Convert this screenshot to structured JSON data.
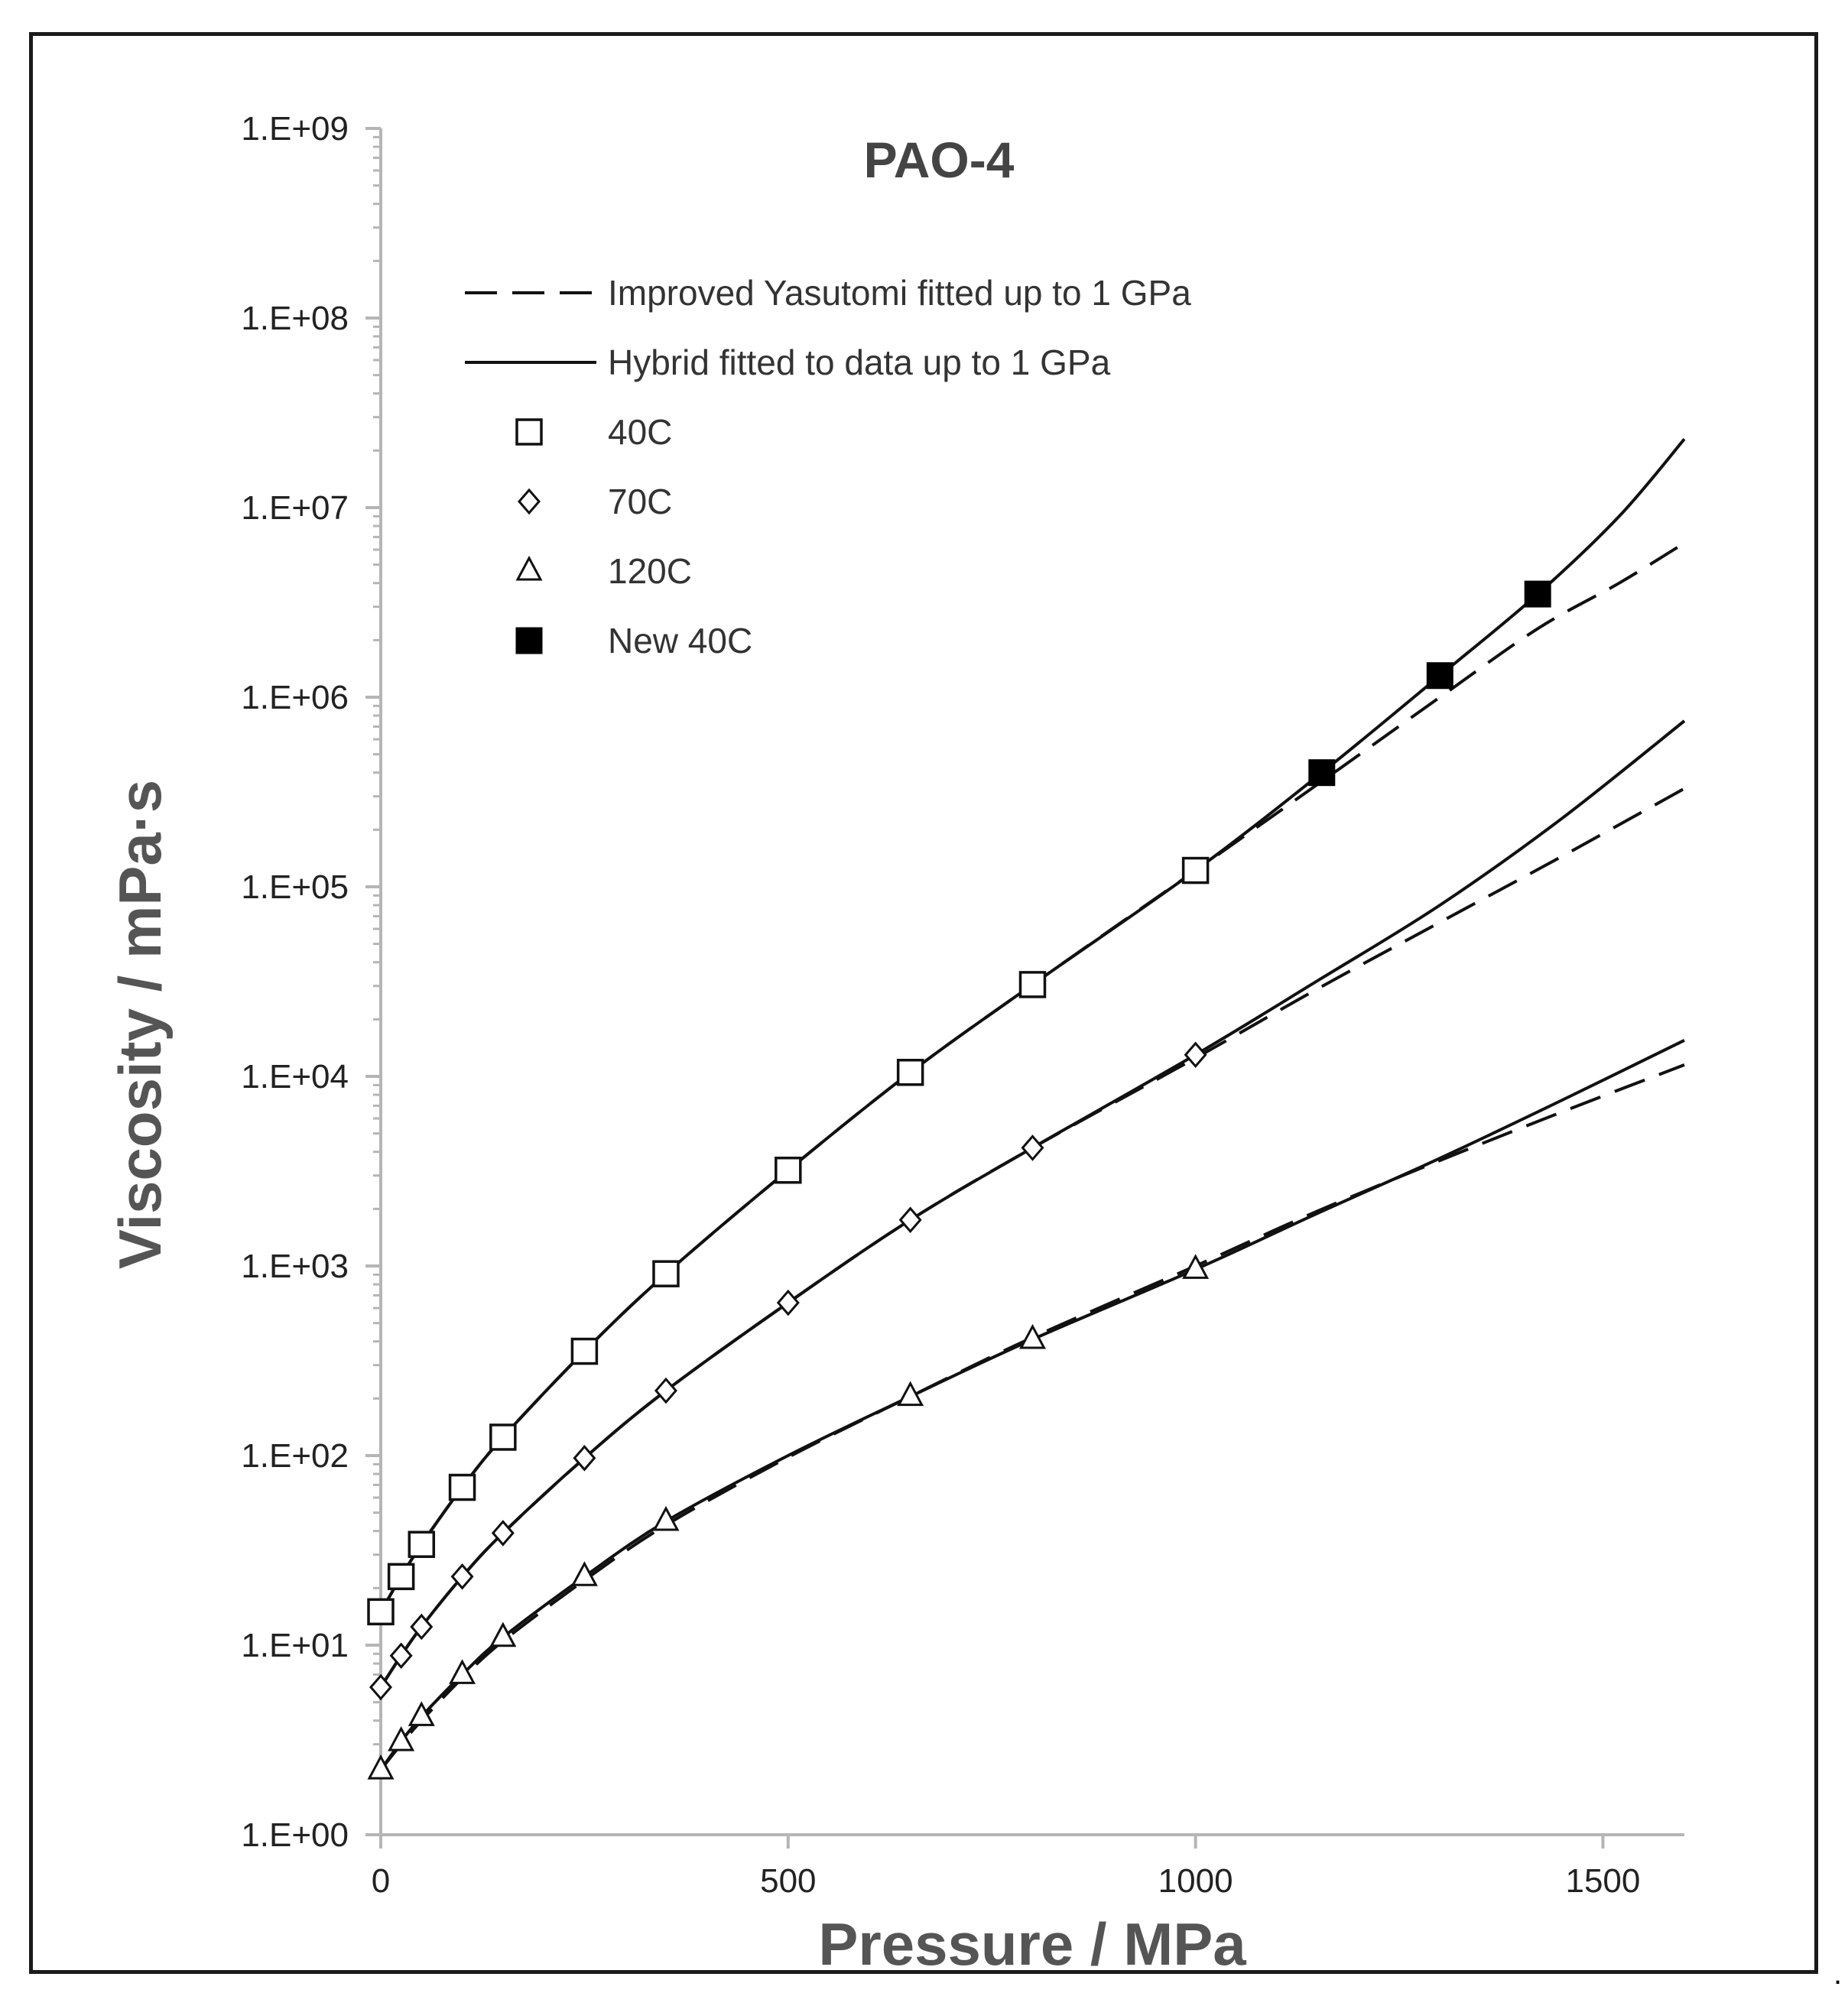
{
  "chart_data": {
    "type": "scatter",
    "title": "PAO-4",
    "xlabel": "Pressure / MPa",
    "ylabel": "Viscosity / mPa·s",
    "xlim": [
      0,
      1600
    ],
    "ylim": [
      1,
      1000000000
    ],
    "yscale": "log",
    "grid": false,
    "legend_position": "top-left",
    "x_ticks": [
      0,
      500,
      1000,
      1500
    ],
    "x_tick_labels": [
      "0",
      "500",
      "1000",
      "1500"
    ],
    "y_ticks": [
      1,
      10,
      100,
      1000,
      10000,
      100000,
      1000000,
      10000000,
      100000000,
      1000000000
    ],
    "y_tick_labels": [
      "1.E+00",
      "1.E+01",
      "1.E+02",
      "1.E+03",
      "1.E+04",
      "1.E+05",
      "1.E+06",
      "1.E+07",
      "1.E+08",
      "1.E+09"
    ],
    "legend": [
      {
        "label": "Improved Yasutomi fitted up to 1 GPa",
        "symbol": "dashed-line"
      },
      {
        "label": "Hybrid fitted to data up to 1 GPa",
        "symbol": "solid-line"
      },
      {
        "label": "40C",
        "symbol": "open-square"
      },
      {
        "label": "70C",
        "symbol": "open-diamond"
      },
      {
        "label": "120C",
        "symbol": "open-triangle"
      },
      {
        "label": "New 40C",
        "symbol": "filled-square"
      }
    ],
    "series": [
      {
        "name": "40C",
        "marker": "open-square",
        "points": [
          [
            0,
            15
          ],
          [
            25,
            23
          ],
          [
            50,
            34
          ],
          [
            100,
            68
          ],
          [
            150,
            125
          ],
          [
            250,
            355
          ],
          [
            350,
            910
          ],
          [
            500,
            3200
          ],
          [
            650,
            10500
          ],
          [
            800,
            30500
          ],
          [
            1000,
            122000
          ]
        ]
      },
      {
        "name": "70C",
        "marker": "open-diamond",
        "points": [
          [
            0,
            6
          ],
          [
            25,
            8.8
          ],
          [
            50,
            12.5
          ],
          [
            100,
            23
          ],
          [
            150,
            39
          ],
          [
            250,
            97
          ],
          [
            350,
            220
          ],
          [
            500,
            640
          ],
          [
            650,
            1750
          ],
          [
            800,
            4200
          ],
          [
            1000,
            13000
          ]
        ]
      },
      {
        "name": "120C",
        "marker": "open-triangle",
        "points": [
          [
            0,
            2.2
          ],
          [
            25,
            3.1
          ],
          [
            50,
            4.2
          ],
          [
            100,
            7
          ],
          [
            150,
            11
          ],
          [
            250,
            23
          ],
          [
            350,
            45
          ],
          [
            650,
            205
          ],
          [
            800,
            410
          ],
          [
            1000,
            960
          ]
        ]
      },
      {
        "name": "New 40C",
        "marker": "filled-square",
        "points": [
          [
            1155,
            400000
          ],
          [
            1300,
            1300000
          ],
          [
            1420,
            3500000
          ]
        ]
      }
    ],
    "curves": [
      {
        "model": "Hybrid fitted to data up to 1 GPa",
        "temperature": "40C",
        "style": "solid",
        "points": [
          [
            0,
            15
          ],
          [
            25,
            23
          ],
          [
            50,
            34
          ],
          [
            100,
            68
          ],
          [
            150,
            125
          ],
          [
            250,
            355
          ],
          [
            350,
            910
          ],
          [
            500,
            3200
          ],
          [
            650,
            10500
          ],
          [
            800,
            30500
          ],
          [
            1000,
            122000
          ],
          [
            1155,
            400000
          ],
          [
            1300,
            1300000
          ],
          [
            1420,
            3500000
          ],
          [
            1520,
            9000000
          ],
          [
            1600,
            23000000
          ]
        ]
      },
      {
        "model": "Improved Yasutomi fitted up to 1 GPa",
        "temperature": "40C",
        "style": "dashed",
        "points": [
          [
            0,
            15
          ],
          [
            25,
            23
          ],
          [
            50,
            34
          ],
          [
            100,
            68
          ],
          [
            150,
            125
          ],
          [
            250,
            355
          ],
          [
            350,
            910
          ],
          [
            500,
            3200
          ],
          [
            650,
            10500
          ],
          [
            800,
            30500
          ],
          [
            1000,
            122000
          ],
          [
            1155,
            360000
          ],
          [
            1300,
            1000000
          ],
          [
            1420,
            2300000
          ],
          [
            1520,
            4000000
          ],
          [
            1600,
            6500000
          ]
        ]
      },
      {
        "model": "Hybrid fitted to data up to 1 GPa",
        "temperature": "70C",
        "style": "solid",
        "points": [
          [
            0,
            6
          ],
          [
            25,
            8.8
          ],
          [
            50,
            12.5
          ],
          [
            100,
            23
          ],
          [
            150,
            39
          ],
          [
            250,
            97
          ],
          [
            350,
            220
          ],
          [
            500,
            640
          ],
          [
            650,
            1750
          ],
          [
            800,
            4200
          ],
          [
            1000,
            13000
          ],
          [
            1150,
            32000
          ],
          [
            1300,
            80000
          ],
          [
            1450,
            230000
          ],
          [
            1600,
            750000
          ]
        ]
      },
      {
        "model": "Improved Yasutomi fitted up to 1 GPa",
        "temperature": "70C",
        "style": "dashed",
        "points": [
          [
            0,
            6
          ],
          [
            25,
            8.8
          ],
          [
            50,
            12.5
          ],
          [
            100,
            23
          ],
          [
            150,
            39
          ],
          [
            250,
            97
          ],
          [
            350,
            220
          ],
          [
            500,
            640
          ],
          [
            650,
            1750
          ],
          [
            800,
            4200
          ],
          [
            1000,
            12500
          ],
          [
            1150,
            29000
          ],
          [
            1300,
            65000
          ],
          [
            1450,
            145000
          ],
          [
            1600,
            330000
          ]
        ]
      },
      {
        "model": "Hybrid fitted to data up to 1 GPa",
        "temperature": "120C",
        "style": "solid",
        "points": [
          [
            0,
            2.2
          ],
          [
            25,
            3.1
          ],
          [
            50,
            4.2
          ],
          [
            100,
            7
          ],
          [
            150,
            11
          ],
          [
            250,
            23
          ],
          [
            350,
            45
          ],
          [
            500,
            100
          ],
          [
            650,
            205
          ],
          [
            800,
            410
          ],
          [
            1000,
            960
          ],
          [
            1150,
            1900
          ],
          [
            1300,
            3700
          ],
          [
            1450,
            7500
          ],
          [
            1600,
            15500
          ]
        ]
      },
      {
        "model": "Improved Yasutomi fitted up to 1 GPa",
        "temperature": "120C",
        "style": "dashed",
        "points": [
          [
            0,
            2.2
          ],
          [
            25,
            3.0
          ],
          [
            50,
            4.0
          ],
          [
            100,
            6.7
          ],
          [
            150,
            10.5
          ],
          [
            250,
            22
          ],
          [
            350,
            43
          ],
          [
            500,
            98
          ],
          [
            650,
            205
          ],
          [
            800,
            420
          ],
          [
            1000,
            1000
          ],
          [
            1150,
            1950
          ],
          [
            1300,
            3600
          ],
          [
            1450,
            6500
          ],
          [
            1600,
            11500
          ]
        ]
      }
    ]
  }
}
